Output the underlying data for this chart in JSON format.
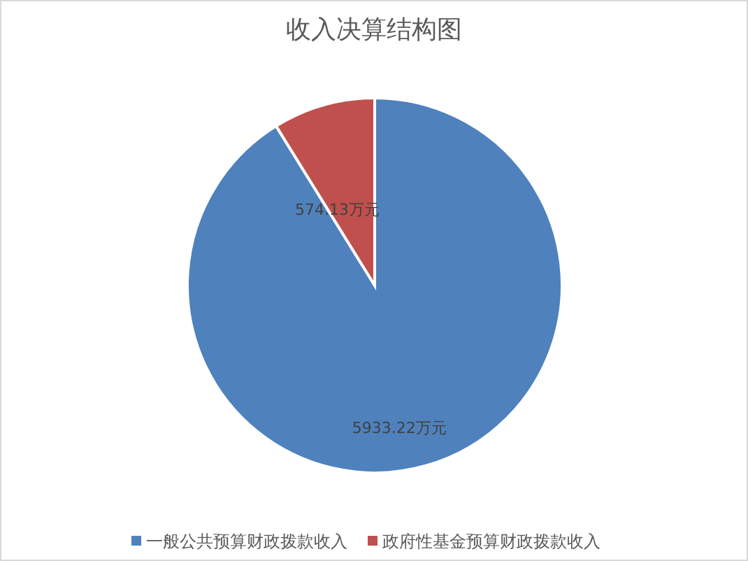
{
  "chart_data": {
    "type": "pie",
    "title": "收入决算结构图",
    "categories": [
      "一般公共预算财政拨款收入",
      "政府性基金预算财政拨款收入"
    ],
    "values": [
      5933.22,
      574.13
    ],
    "colors": [
      "#4f81bd",
      "#c0504d"
    ],
    "value_labels": [
      "5933.22万元",
      "574.13万元"
    ],
    "legend": "bottom"
  }
}
